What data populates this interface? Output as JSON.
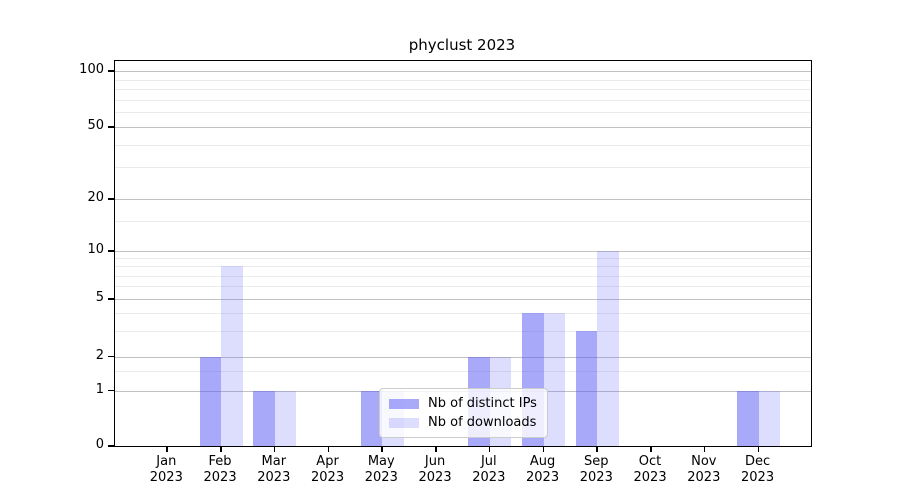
{
  "chart_data": {
    "type": "bar",
    "title": "phyclust 2023",
    "categories": [
      "Jan",
      "Feb",
      "Mar",
      "Apr",
      "May",
      "Jun",
      "Jul",
      "Aug",
      "Sep",
      "Oct",
      "Nov",
      "Dec"
    ],
    "category_year": "2023",
    "series": [
      {
        "name": "Nb of distinct IPs",
        "color": "rgba(84,84,245,0.5)",
        "values": [
          0,
          2,
          1,
          0,
          1,
          0,
          2,
          4,
          3,
          0,
          0,
          1
        ]
      },
      {
        "name": "Nb of downloads",
        "color": "rgba(84,84,245,0.2)",
        "values": [
          0,
          8,
          1,
          0,
          1,
          0,
          2,
          4,
          10,
          0,
          0,
          1
        ]
      }
    ],
    "y_axis": {
      "scale": "log-like",
      "ticks": [
        0,
        1,
        2,
        5,
        10,
        20,
        50,
        100
      ],
      "tick_labels": [
        "0",
        "1",
        "2",
        "5",
        "10",
        "20",
        "50",
        "100"
      ],
      "minor_ticks": [
        1.5,
        3,
        4,
        6,
        7,
        8,
        9,
        15,
        30,
        40,
        60,
        70,
        80,
        90
      ]
    },
    "legend": {
      "position": "lower-center",
      "entries": [
        "Nb of distinct IPs",
        "Nb of downloads"
      ]
    },
    "grid": true,
    "colors": {
      "bar_base": "#5454f5",
      "grid_major": "#c2c2c2",
      "grid_minor": "#ebebeb",
      "frame": "#000000"
    }
  }
}
